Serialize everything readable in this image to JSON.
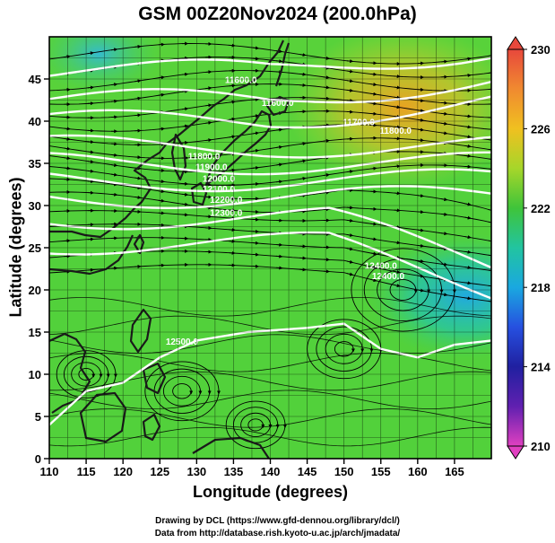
{
  "title": "GSM 00Z20Nov2024 (200.0hPa)",
  "xlabel": "Longitude (degrees)",
  "ylabel": "Latitude  (degrees)",
  "credits": [
    "Drawing by DCL (https://www.gfd-dennou.org/library/dcl/)",
    "Data from http://database.rish.kyoto-u.ac.jp/arch/jmadata/"
  ],
  "map": {
    "lon_range": [
      110,
      170
    ],
    "lat_range": [
      0,
      50
    ],
    "lon_ticks": [
      "110",
      "115",
      "120",
      "125",
      "130",
      "135",
      "140",
      "145",
      "150",
      "155",
      "160",
      "165"
    ],
    "lat_ticks": [
      "0",
      "5",
      "10",
      "15",
      "20",
      "25",
      "30",
      "35",
      "40",
      "45"
    ],
    "contour_labels": [
      "11600.0",
      "11600.0",
      "11700.0",
      "11800.0",
      "11800.0",
      "11900.0",
      "12000.0",
      "12100.0",
      "12200.0",
      "12300.0",
      "12400.0",
      "12400.0",
      "12500.0"
    ],
    "colorbar": {
      "labels": [
        "230",
        "226",
        "222",
        "218",
        "214",
        "210"
      ],
      "colors": [
        "#e8483c",
        "#f08a30",
        "#f0c020",
        "#a6d62a",
        "#3fc43a",
        "#22c4a0",
        "#1aa8e0",
        "#2650e0",
        "#2020a0",
        "#6020b0",
        "#e040c0"
      ]
    },
    "field_colors": {
      "land": "#1a1a1a",
      "contour": "#ffffff",
      "streamline": "#000000",
      "warm_core": "#e8a020",
      "cool_core": "#22b0d0",
      "background": "#58d23a"
    }
  }
}
